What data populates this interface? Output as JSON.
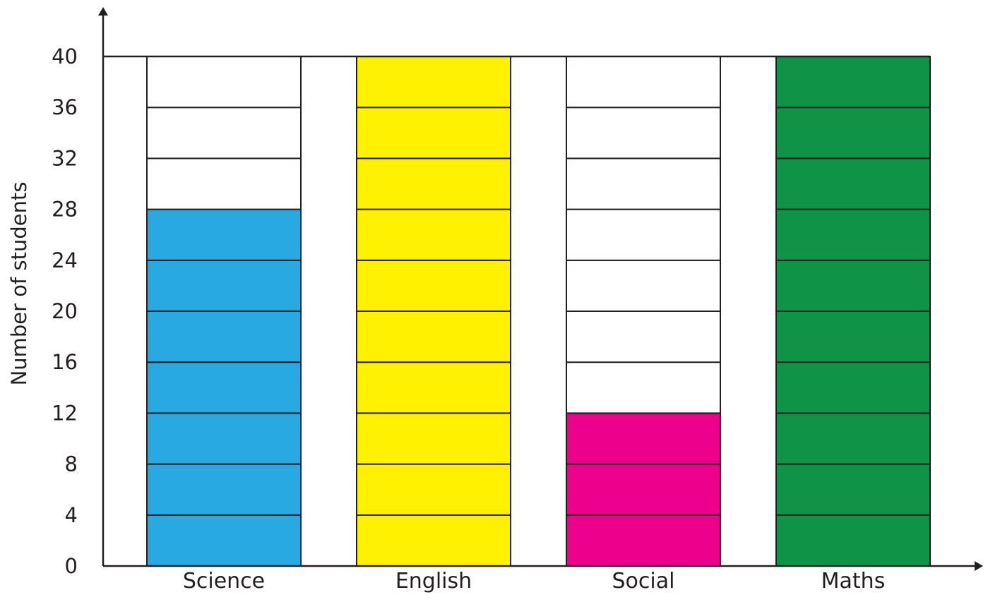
{
  "chart_data": {
    "type": "bar",
    "categories": [
      "Science",
      "English",
      "Social",
      "Maths"
    ],
    "values": [
      28,
      40,
      12,
      40
    ],
    "capacity": 40,
    "segment_size": 4,
    "ylabel": "Number of students",
    "xlabel": "",
    "ylim": [
      0,
      40
    ],
    "y_ticks": [
      "0",
      "4",
      "8",
      "12",
      "16",
      "20",
      "24",
      "28",
      "32",
      "36",
      "40"
    ],
    "colors": [
      "#29a9e1",
      "#fff100",
      "#ec008c",
      "#0f9447"
    ],
    "empty_color": "#ffffff",
    "line_color": "#231f20"
  }
}
